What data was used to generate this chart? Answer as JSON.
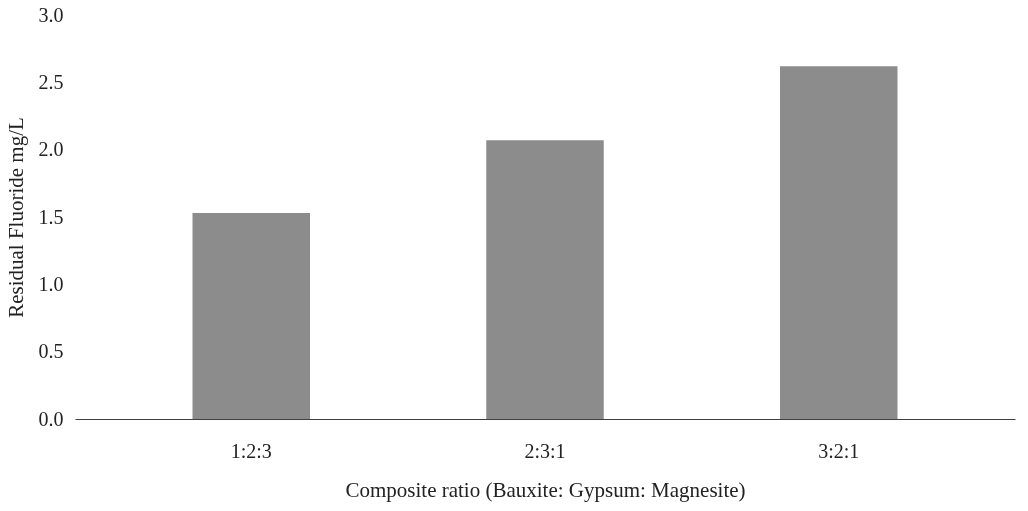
{
  "chart_data": {
    "type": "bar",
    "xlabel": "Composite ratio (Bauxite: Gypsum: Magnesite)",
    "ylabel": "Residual Fluoride mg/L",
    "categories": [
      "1:2:3",
      "2:3:1",
      "3:2:1"
    ],
    "values": [
      1.53,
      2.07,
      2.62
    ],
    "color": "#8c8c8c",
    "ylim": [
      0,
      3
    ],
    "yticks": [
      {
        "value": 0,
        "label": "0.0"
      },
      {
        "value": 0.5,
        "label": "0.5"
      },
      {
        "value": 1,
        "label": "1.0"
      },
      {
        "value": 1.5,
        "label": "1.5"
      },
      {
        "value": 2,
        "label": "2.0"
      },
      {
        "value": 2.5,
        "label": "2.5"
      },
      {
        "value": 3,
        "label": "3.0"
      }
    ],
    "grid": false
  }
}
